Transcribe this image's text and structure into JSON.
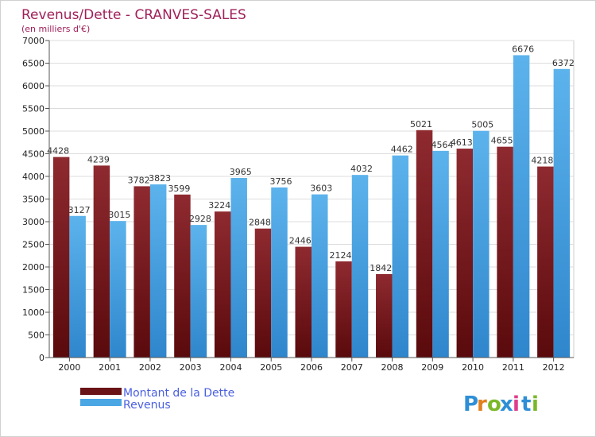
{
  "chart_data": {
    "type": "bar",
    "title": "Revenus/Dette - CRANVES-SALES",
    "subtitle": "(en milliers d'€)",
    "categories": [
      "2000",
      "2001",
      "2002",
      "2003",
      "2004",
      "2005",
      "2006",
      "2007",
      "2008",
      "2009",
      "2010",
      "2011",
      "2012"
    ],
    "series": [
      {
        "name": "Montant de la Dette",
        "color": "#7a1a1e",
        "values": [
          4428,
          4239,
          3782,
          3599,
          3224,
          2848,
          2446,
          2124,
          1842,
          5021,
          4613,
          4655,
          4218
        ]
      },
      {
        "name": "Revenus",
        "color": "#4ba6e4",
        "values": [
          3127,
          3015,
          3823,
          2928,
          3965,
          3756,
          3603,
          4032,
          4462,
          4564,
          5005,
          6676,
          6372
        ]
      }
    ],
    "ylim": [
      0,
      7000
    ],
    "yticks": [
      0,
      500,
      1000,
      1500,
      2000,
      2500,
      3000,
      3500,
      4000,
      4500,
      5000,
      5500,
      6000,
      6500,
      7000
    ],
    "grid": true,
    "legend_position": "bottom-left"
  },
  "logo": {
    "text": "Proxiti",
    "letter_colors": [
      "#2e8fd6",
      "#e0801f",
      "#7bb82a",
      "#2e8fd6",
      "#e03d8a",
      "#2e8fd6",
      "#7bb82a"
    ]
  }
}
